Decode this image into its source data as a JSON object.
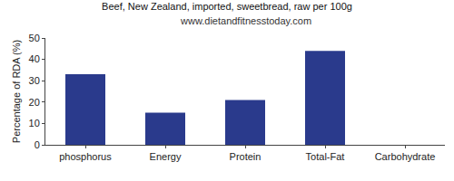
{
  "chart_data": {
    "type": "bar",
    "title": "Beef, New Zealand, imported, sweetbread, raw per 100g",
    "subtitle": "www.dietandfitnesstoday.com",
    "ylabel": "Percentage of RDA (%)",
    "categories": [
      "phosphorus",
      "Energy",
      "Protein",
      "Total-Fat",
      "Carbohydrate"
    ],
    "values": [
      33,
      15,
      21,
      44,
      0
    ],
    "color": "#2a3a8c",
    "ylim": [
      0,
      50
    ],
    "yticks": [
      0,
      10,
      20,
      30,
      40,
      50
    ],
    "grid": false
  }
}
